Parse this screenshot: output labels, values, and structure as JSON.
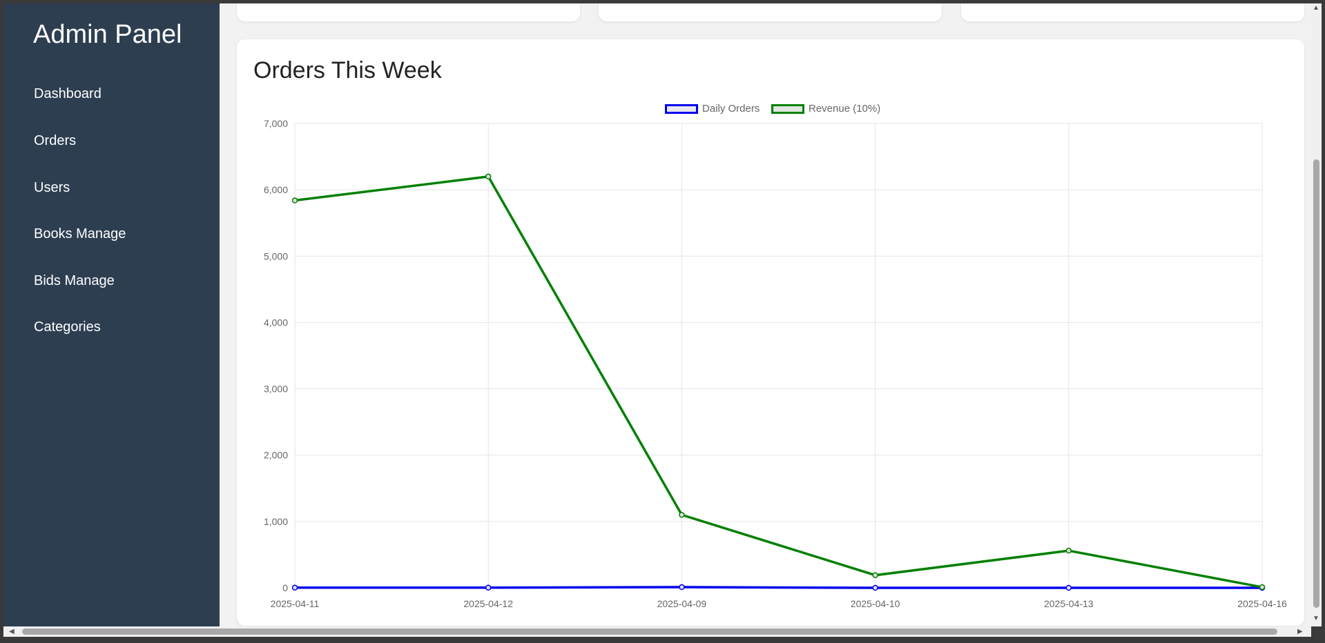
{
  "sidebar": {
    "title": "Admin Panel",
    "items": [
      {
        "label": "Dashboard"
      },
      {
        "label": "Orders"
      },
      {
        "label": "Users"
      },
      {
        "label": "Books Manage"
      },
      {
        "label": "Bids Manage"
      },
      {
        "label": "Categories"
      }
    ]
  },
  "colors": {
    "sidebar_bg": "#2d3e50",
    "daily_orders": "#0000ee",
    "revenue": "#008000"
  },
  "chart_data": {
    "type": "line",
    "title": "Orders This Week",
    "categories": [
      "2025-04-11",
      "2025-04-12",
      "2025-04-09",
      "2025-04-10",
      "2025-04-13",
      "2025-04-16"
    ],
    "series": [
      {
        "name": "Daily Orders",
        "color": "#0000ee",
        "values": [
          3,
          2,
          10,
          0,
          0,
          0
        ]
      },
      {
        "name": "Revenue (10%)",
        "color": "#008000",
        "values": [
          5840,
          6200,
          1100,
          190,
          560,
          10
        ]
      }
    ],
    "yticks": [
      "0",
      "1,000",
      "2,000",
      "3,000",
      "4,000",
      "5,000",
      "6,000",
      "7,000"
    ],
    "ylim": [
      0,
      7000
    ],
    "grid": true,
    "legend": "top-center"
  }
}
